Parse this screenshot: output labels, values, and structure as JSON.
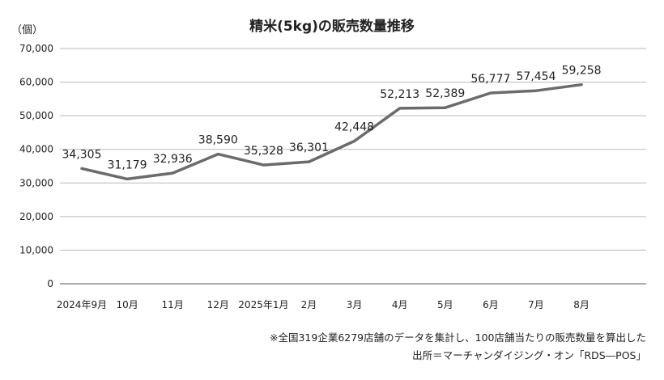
{
  "chart_data": {
    "type": "line",
    "title": "精米(5kg)の販売数量推移",
    "ylabel": "（個）",
    "xlabel": "",
    "ylim": [
      0,
      70000
    ],
    "yticks": [
      0,
      10000,
      20000,
      30000,
      40000,
      50000,
      60000,
      70000
    ],
    "ytick_labels": [
      "0",
      "10,000",
      "20,000",
      "30,000",
      "40,000",
      "50,000",
      "60,000",
      "70,000"
    ],
    "grid": true,
    "categories": [
      "2024年9月",
      "10月",
      "11月",
      "12月",
      "2025年1月",
      "2月",
      "3月",
      "4月",
      "5月",
      "6月",
      "7月",
      "8月"
    ],
    "series": [
      {
        "values": [
          34305,
          31179,
          32936,
          38590,
          35328,
          36301,
          42448,
          52213,
          52389,
          56777,
          57454,
          59258
        ],
        "labels": [
          "34,305",
          "31,179",
          "32,936",
          "38,590",
          "35,328",
          "36,301",
          "42,448",
          "52,213",
          "52,389",
          "56,777",
          "57,454",
          "59,258"
        ],
        "color": "#6b6b6b"
      }
    ],
    "notes": [
      "※全国319企業6279店舗のデータを集計し、100店舗当たりの販売数量を算出した",
      "出所＝マーチャンダイジング・オン「RDS―POS」"
    ]
  }
}
